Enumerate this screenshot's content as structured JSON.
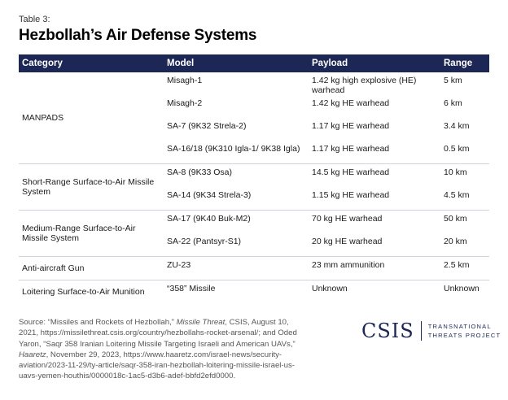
{
  "table_label": "Table 3:",
  "title": "Hezbollah’s Air Defense Systems",
  "headers": {
    "category": "Category",
    "model": "Model",
    "payload": "Payload",
    "range": "Range"
  },
  "groups": [
    {
      "category": "MANPADS",
      "rows": [
        {
          "model": "Misagh-1",
          "payload": "1.42 kg high explosive (HE) warhead",
          "range": "5 km"
        },
        {
          "model": "Misagh-2",
          "payload": "1.42 kg HE warhead",
          "range": "6 km"
        },
        {
          "model": "SA-7 (9K32 Strela-2)",
          "payload": "1.17 kg HE warhead",
          "range": "3.4 km"
        },
        {
          "model": "SA-16/18 (9K310 Igla-1/ 9K38 Igla)",
          "payload": "1.17 kg HE warhead",
          "range": "0.5 km"
        }
      ]
    },
    {
      "category": "Short-Range Surface-to-Air Missile System",
      "rows": [
        {
          "model": "SA-8 (9K33 Osa)",
          "payload": "14.5 kg HE warhead",
          "range": "10 km"
        },
        {
          "model": "SA-14 (9K34 Strela-3)",
          "payload": "1.15 kg HE warhead",
          "range": "4.5 km"
        }
      ]
    },
    {
      "category": "Medium-Range Surface-to-Air Missile System",
      "rows": [
        {
          "model": "SA-17 (9K40 Buk-M2)",
          "payload": "70 kg HE warhead",
          "range": "50 km"
        },
        {
          "model": "SA-22 (Pantsyr-S1)",
          "payload": "20 kg HE warhead",
          "range": "20 km"
        }
      ]
    },
    {
      "category": "Anti-aircraft Gun",
      "rows": [
        {
          "model": "ZU-23",
          "payload": "23 mm ammunition",
          "range": "2.5 km"
        }
      ]
    },
    {
      "category": "Loitering Surface-to-Air Munition",
      "rows": [
        {
          "model": "“358” Missile",
          "payload": "Unknown",
          "range": "Unknown"
        }
      ]
    }
  ],
  "source": {
    "prefix": "Source: “Missiles and Rockets of Hezbollah,” ",
    "pub1": "Missile Threat",
    "mid": ", CSIS, August 10, 2021, https://missilethreat.csis.org/country/hezbollahs-rocket-arsenal/; and Oded Yaron, “Saqr 358 Iranian Loitering Missile Targeting Israeli and American UAVs,” ",
    "pub2": "Haaretz",
    "suffix": ", November 29, 2023, https://www.haaretz.com/israel-news/security-aviation/2023-11-29/ty-article/saqr-358-iran-hezbollah-loitering-missile-israel-us-uavs-yemen-houthis/0000018c-1ac5-d3b6-adef-bbfd2efd0000."
  },
  "logo": {
    "name": "CSIS",
    "line1": "TRANSNATIONAL",
    "line2": "THREATS PROJECT"
  }
}
